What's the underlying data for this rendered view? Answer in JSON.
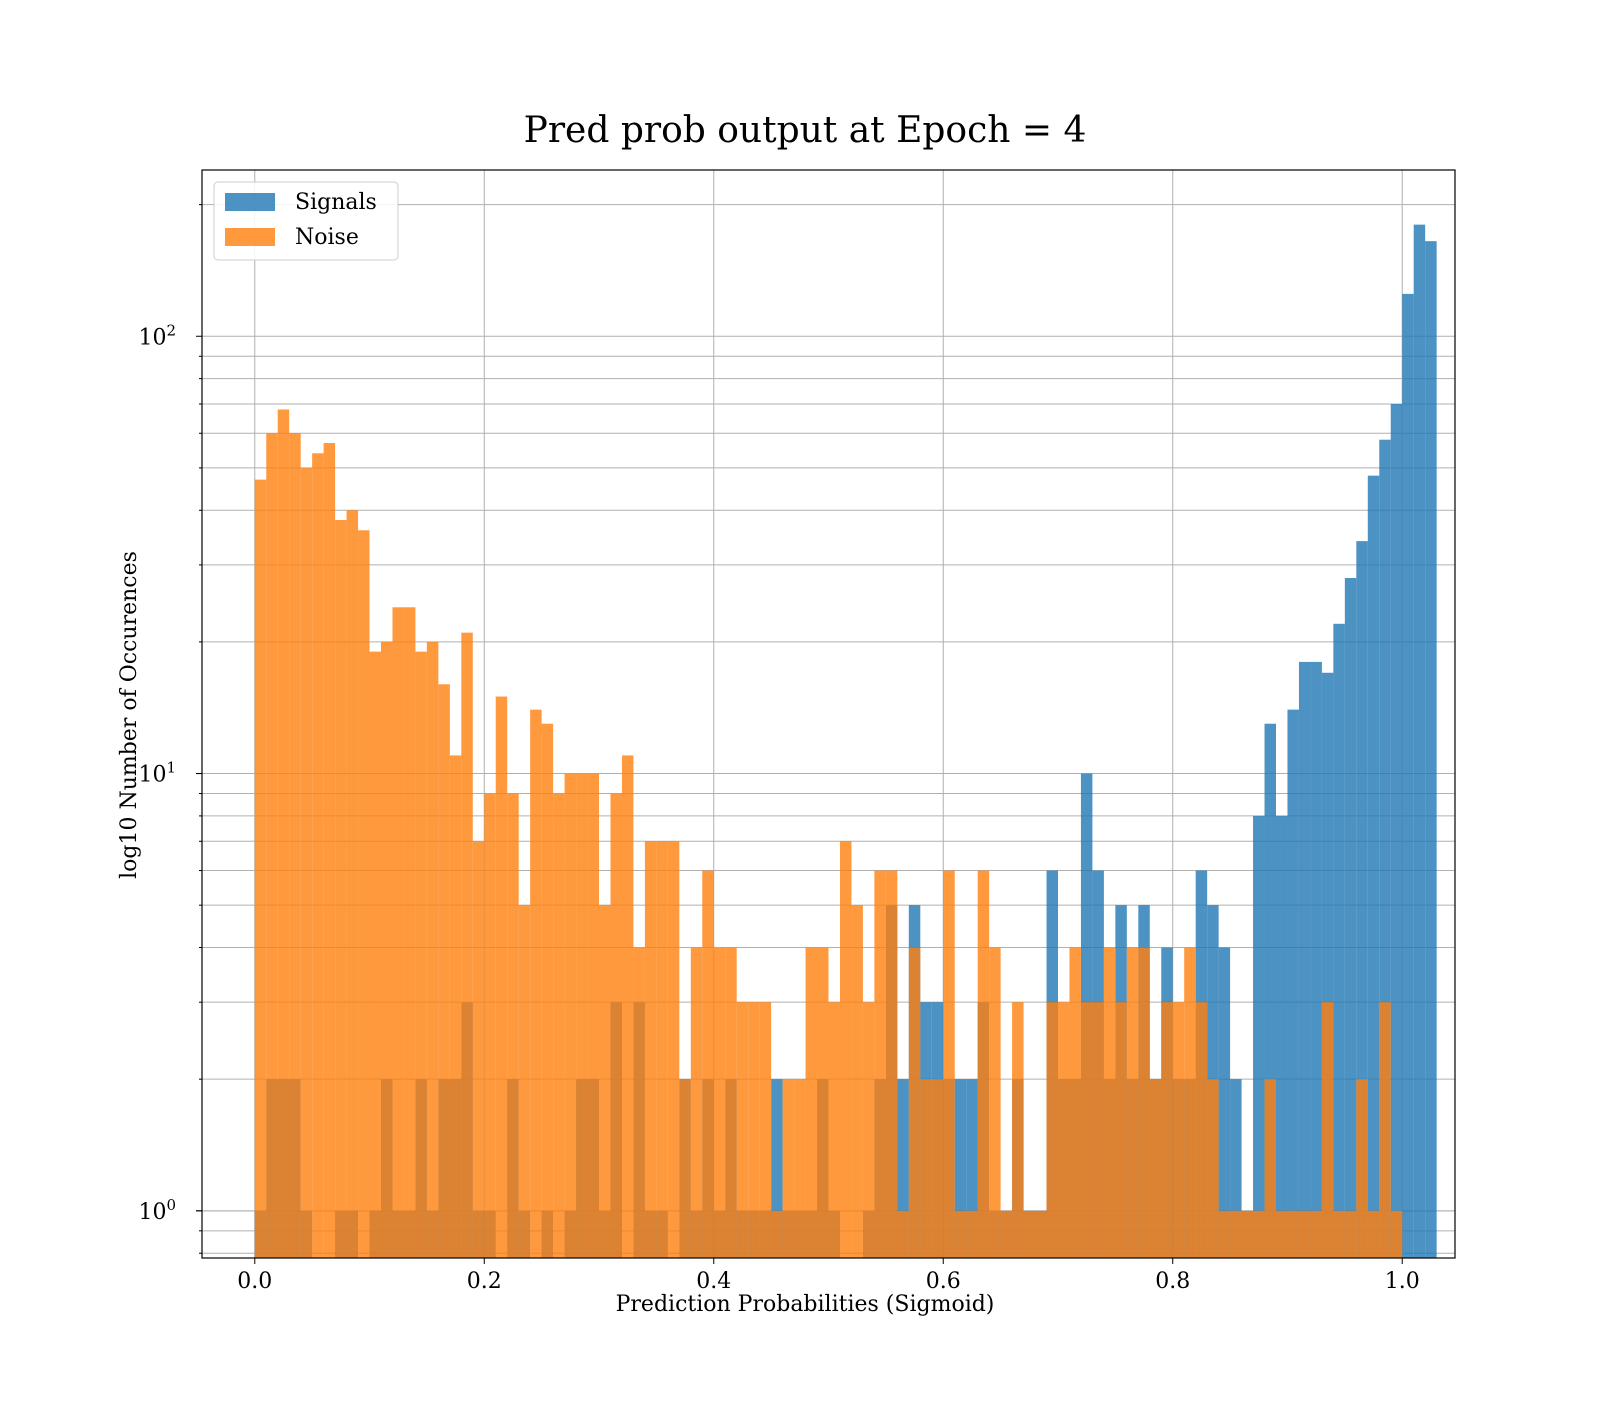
{
  "chart_data": {
    "type": "bar",
    "title": "Pred prob output at Epoch = 4",
    "xlabel": "Prediction Probabilities (Sigmoid)",
    "ylabel": "log10 Number of Occurences",
    "xlim": [
      -0.046,
      1.046
    ],
    "ylim": [
      0.78,
      240
    ],
    "yscale": "log",
    "grid": true,
    "legend_position": "top-left",
    "bin_width": 0.01,
    "x_ticks": [
      "0.0",
      "0.2",
      "0.4",
      "0.6",
      "0.8",
      "1.0"
    ],
    "y_ticks": [
      {
        "base": "10",
        "exp": "0"
      },
      {
        "base": "10",
        "exp": "1"
      },
      {
        "base": "10",
        "exp": "2"
      }
    ],
    "series": [
      {
        "name": "Signals",
        "color": "#1f77b4",
        "opacity": 0.8,
        "bins": [
          [
            0.005,
            1
          ],
          [
            0.015,
            2
          ],
          [
            0.025,
            2
          ],
          [
            0.035,
            2
          ],
          [
            0.045,
            1
          ],
          [
            0.075,
            1
          ],
          [
            0.085,
            1
          ],
          [
            0.105,
            1
          ],
          [
            0.115,
            2
          ],
          [
            0.125,
            1
          ],
          [
            0.135,
            1
          ],
          [
            0.145,
            2
          ],
          [
            0.155,
            1
          ],
          [
            0.165,
            2
          ],
          [
            0.175,
            2
          ],
          [
            0.185,
            3
          ],
          [
            0.195,
            1
          ],
          [
            0.205,
            1
          ],
          [
            0.225,
            2
          ],
          [
            0.235,
            1
          ],
          [
            0.255,
            1
          ],
          [
            0.275,
            1
          ],
          [
            0.285,
            2
          ],
          [
            0.295,
            2
          ],
          [
            0.305,
            1
          ],
          [
            0.315,
            3
          ],
          [
            0.335,
            3
          ],
          [
            0.345,
            1
          ],
          [
            0.355,
            1
          ],
          [
            0.375,
            2
          ],
          [
            0.385,
            1
          ],
          [
            0.395,
            2
          ],
          [
            0.405,
            1
          ],
          [
            0.415,
            2
          ],
          [
            0.425,
            1
          ],
          [
            0.435,
            1
          ],
          [
            0.445,
            1
          ],
          [
            0.455,
            2
          ],
          [
            0.465,
            1
          ],
          [
            0.475,
            1
          ],
          [
            0.485,
            1
          ],
          [
            0.495,
            2
          ],
          [
            0.505,
            1
          ],
          [
            0.535,
            1
          ],
          [
            0.545,
            2
          ],
          [
            0.555,
            5
          ],
          [
            0.565,
            2
          ],
          [
            0.575,
            5
          ],
          [
            0.585,
            3
          ],
          [
            0.595,
            3
          ],
          [
            0.605,
            2
          ],
          [
            0.615,
            2
          ],
          [
            0.625,
            2
          ],
          [
            0.635,
            3
          ],
          [
            0.645,
            1
          ],
          [
            0.655,
            1
          ],
          [
            0.665,
            2
          ],
          [
            0.675,
            1
          ],
          [
            0.685,
            1
          ],
          [
            0.695,
            6
          ],
          [
            0.705,
            2
          ],
          [
            0.715,
            2
          ],
          [
            0.725,
            10
          ],
          [
            0.735,
            6
          ],
          [
            0.745,
            2
          ],
          [
            0.755,
            5
          ],
          [
            0.765,
            2
          ],
          [
            0.775,
            5
          ],
          [
            0.785,
            2
          ],
          [
            0.795,
            4
          ],
          [
            0.805,
            2
          ],
          [
            0.815,
            2
          ],
          [
            0.825,
            6
          ],
          [
            0.835,
            5
          ],
          [
            0.845,
            4
          ],
          [
            0.855,
            2
          ],
          [
            0.865,
            1
          ],
          [
            0.875,
            8
          ],
          [
            0.885,
            13
          ],
          [
            0.895,
            8
          ],
          [
            0.905,
            14
          ],
          [
            0.915,
            18
          ],
          [
            0.925,
            18
          ],
          [
            0.935,
            17
          ],
          [
            0.945,
            22
          ],
          [
            0.955,
            28
          ],
          [
            0.965,
            34
          ],
          [
            0.975,
            48
          ],
          [
            0.985,
            58
          ],
          [
            0.995,
            70
          ],
          [
            1.005,
            125
          ],
          [
            1.015,
            180
          ],
          [
            1.025,
            165
          ]
        ]
      },
      {
        "name": "Noise",
        "color": "#ff7f0e",
        "opacity": 0.8,
        "bins": [
          [
            0.005,
            47
          ],
          [
            0.015,
            60
          ],
          [
            0.025,
            68
          ],
          [
            0.035,
            60
          ],
          [
            0.045,
            50
          ],
          [
            0.055,
            54
          ],
          [
            0.065,
            57
          ],
          [
            0.075,
            38
          ],
          [
            0.085,
            40
          ],
          [
            0.095,
            36
          ],
          [
            0.105,
            19
          ],
          [
            0.115,
            20
          ],
          [
            0.125,
            24
          ],
          [
            0.135,
            24
          ],
          [
            0.145,
            19
          ],
          [
            0.155,
            20
          ],
          [
            0.165,
            16
          ],
          [
            0.175,
            11
          ],
          [
            0.185,
            21
          ],
          [
            0.195,
            7
          ],
          [
            0.205,
            9
          ],
          [
            0.215,
            15
          ],
          [
            0.225,
            9
          ],
          [
            0.235,
            5
          ],
          [
            0.245,
            14
          ],
          [
            0.255,
            13
          ],
          [
            0.265,
            9
          ],
          [
            0.275,
            10
          ],
          [
            0.285,
            10
          ],
          [
            0.295,
            10
          ],
          [
            0.305,
            5
          ],
          [
            0.315,
            9
          ],
          [
            0.325,
            11
          ],
          [
            0.335,
            4
          ],
          [
            0.345,
            7
          ],
          [
            0.355,
            7
          ],
          [
            0.365,
            7
          ],
          [
            0.375,
            2
          ],
          [
            0.385,
            4
          ],
          [
            0.395,
            6
          ],
          [
            0.405,
            4
          ],
          [
            0.415,
            4
          ],
          [
            0.425,
            3
          ],
          [
            0.435,
            3
          ],
          [
            0.445,
            3
          ],
          [
            0.455,
            1
          ],
          [
            0.465,
            2
          ],
          [
            0.475,
            2
          ],
          [
            0.485,
            4
          ],
          [
            0.495,
            4
          ],
          [
            0.505,
            3
          ],
          [
            0.515,
            7
          ],
          [
            0.525,
            5
          ],
          [
            0.535,
            3
          ],
          [
            0.545,
            6
          ],
          [
            0.555,
            6
          ],
          [
            0.565,
            1
          ],
          [
            0.575,
            4
          ],
          [
            0.585,
            2
          ],
          [
            0.595,
            2
          ],
          [
            0.605,
            6
          ],
          [
            0.615,
            1
          ],
          [
            0.625,
            1
          ],
          [
            0.635,
            6
          ],
          [
            0.645,
            4
          ],
          [
            0.655,
            1
          ],
          [
            0.665,
            3
          ],
          [
            0.675,
            1
          ],
          [
            0.685,
            1
          ],
          [
            0.695,
            3
          ],
          [
            0.705,
            3
          ],
          [
            0.715,
            4
          ],
          [
            0.725,
            3
          ],
          [
            0.735,
            3
          ],
          [
            0.745,
            4
          ],
          [
            0.755,
            3
          ],
          [
            0.765,
            4
          ],
          [
            0.775,
            4
          ],
          [
            0.785,
            2
          ],
          [
            0.795,
            3
          ],
          [
            0.805,
            3
          ],
          [
            0.815,
            4
          ],
          [
            0.825,
            3
          ],
          [
            0.835,
            2
          ],
          [
            0.845,
            1
          ],
          [
            0.855,
            1
          ],
          [
            0.865,
            1
          ],
          [
            0.875,
            1
          ],
          [
            0.885,
            2
          ],
          [
            0.895,
            1
          ],
          [
            0.905,
            1
          ],
          [
            0.915,
            1
          ],
          [
            0.925,
            1
          ],
          [
            0.935,
            3
          ],
          [
            0.945,
            1
          ],
          [
            0.955,
            1
          ],
          [
            0.965,
            2
          ],
          [
            0.975,
            1
          ],
          [
            0.985,
            3
          ],
          [
            0.995,
            1
          ]
        ]
      }
    ]
  }
}
